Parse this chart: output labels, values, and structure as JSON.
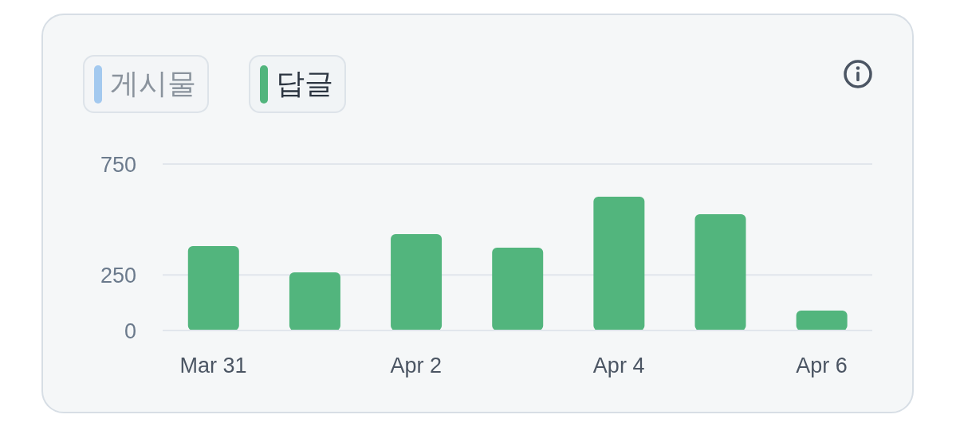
{
  "chart_data": {
    "type": "bar",
    "categories": [
      "Mar 31",
      null,
      "Apr 2",
      null,
      "Apr 4",
      null,
      "Apr 6"
    ],
    "series": [
      {
        "name": "게시물",
        "color": "#a3c9ef",
        "values": [
          null,
          null,
          null,
          null,
          null,
          null,
          null
        ]
      },
      {
        "name": "답글",
        "color": "#52b57d",
        "values": [
          380,
          262,
          434,
          373,
          603,
          524,
          90
        ]
      }
    ],
    "ylim": [
      0,
      750
    ],
    "yticks": [
      0,
      250,
      750
    ],
    "grid": "y",
    "legend": "top left"
  }
}
